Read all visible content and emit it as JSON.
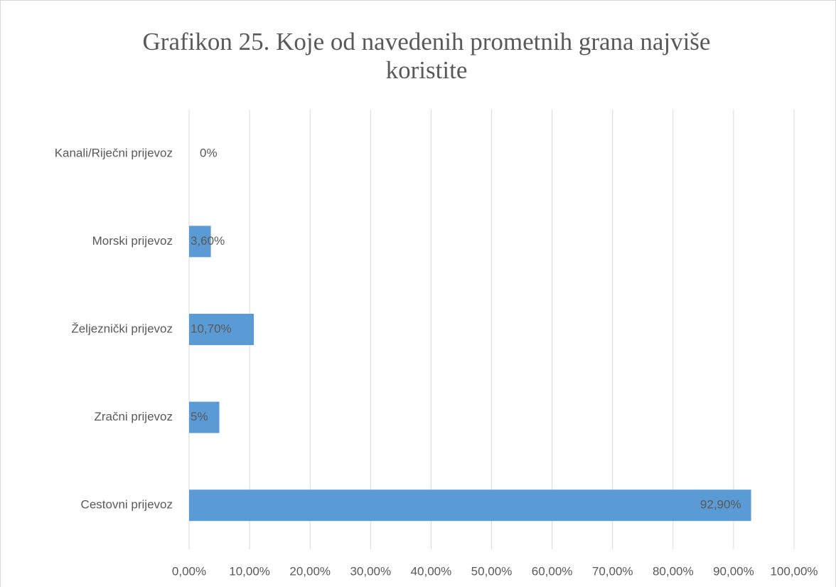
{
  "chart_data": {
    "type": "hbar",
    "title": "Grafikon 25. Koje od navedenih prometnih grana najviše koristite",
    "categories": [
      "Kanali/Riječni prijevoz",
      "Morski prijevoz",
      "Željeznički prijevoz",
      "Zračni prijevoz",
      "Cestovni prijevoz"
    ],
    "values": [
      0,
      3.6,
      10.7,
      5,
      92.9
    ],
    "value_labels": [
      "0%",
      "3,60%",
      "10,70%",
      "5%",
      "92,90%"
    ],
    "color": "#5b9bd5",
    "xlim": [
      0,
      100
    ],
    "xticks": [
      {
        "value": 0,
        "label": "0,00%"
      },
      {
        "value": 10,
        "label": "10,00%"
      },
      {
        "value": 20,
        "label": "20,00%"
      },
      {
        "value": 30,
        "label": "30,00%"
      },
      {
        "value": 40,
        "label": "40,00%"
      },
      {
        "value": 50,
        "label": "50,00%"
      },
      {
        "value": 60,
        "label": "60,00%"
      },
      {
        "value": 70,
        "label": "70,00%"
      },
      {
        "value": 80,
        "label": "80,00%"
      },
      {
        "value": 90,
        "label": "90,00%"
      },
      {
        "value": 100,
        "label": "100,00%"
      }
    ],
    "grid": true
  }
}
